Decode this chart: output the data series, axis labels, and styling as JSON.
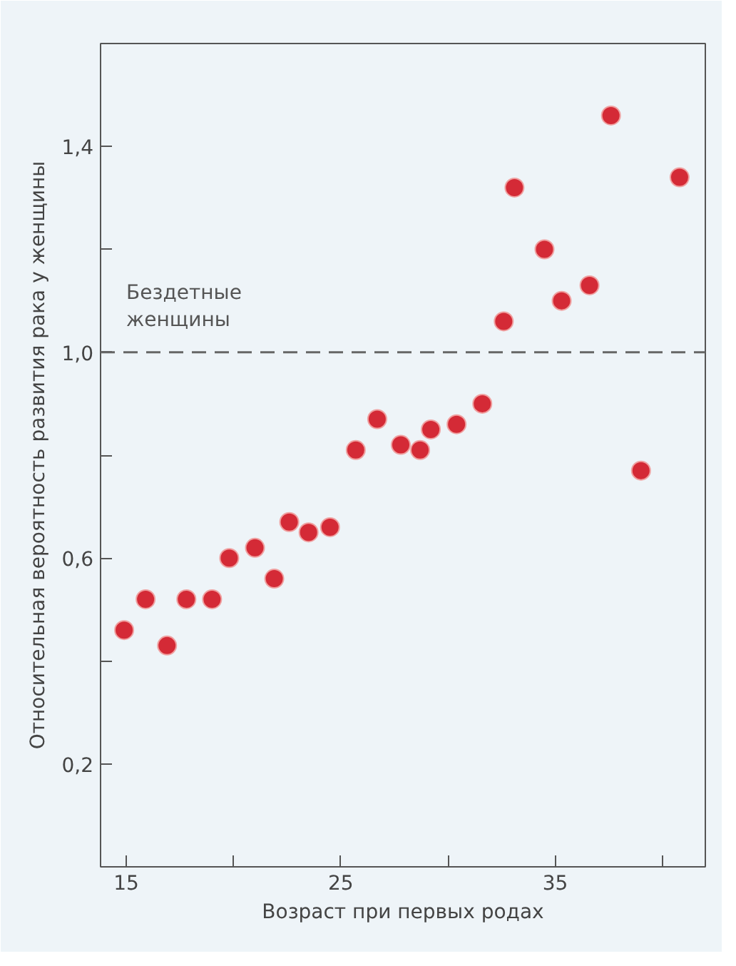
{
  "chart_data": {
    "type": "scatter",
    "xlabel": "Возраст при первых родах",
    "ylabel": "Относительная вероятность развития рака у женщины",
    "x": [
      14.9,
      15.9,
      16.9,
      17.8,
      19.0,
      19.8,
      21.0,
      21.9,
      22.6,
      23.5,
      24.5,
      25.7,
      26.7,
      27.8,
      28.7,
      29.2,
      30.4,
      31.6,
      32.6,
      33.1,
      34.5,
      35.3,
      36.6,
      37.6,
      39.0,
      40.8
    ],
    "series": [
      {
        "color": "#d42a36",
        "values": [
          0.46,
          0.52,
          0.43,
          0.52,
          0.52,
          0.6,
          0.62,
          0.56,
          0.67,
          0.65,
          0.66,
          0.81,
          0.87,
          0.82,
          0.81,
          0.85,
          0.86,
          0.9,
          1.06,
          1.32,
          1.2,
          1.1,
          1.13,
          1.46,
          0.77,
          1.34
        ]
      }
    ],
    "marker": "circle",
    "xlim": [
      13.8,
      42
    ],
    "ylim": [
      0,
      1.6
    ],
    "xticks": [
      15,
      {
        "value": 20,
        "label": null
      },
      25,
      {
        "value": 30,
        "label": null
      },
      35,
      {
        "value": 40,
        "label": null
      }
    ],
    "yticks": [
      {
        "value": 0.2,
        "label": "0,2"
      },
      {
        "value": 0.4,
        "label": null
      },
      {
        "value": 0.6,
        "label": "0,6"
      },
      {
        "value": 0.8,
        "label": null
      },
      {
        "value": 1.0,
        "label": "1,0"
      },
      {
        "value": 1.2,
        "label": null
      },
      {
        "value": 1.4,
        "label": "1,4"
      }
    ],
    "ref_lines": [
      {
        "axis": "y",
        "value": 1.0,
        "label": "Бездетные женщины",
        "color": "#666666",
        "line_style": "dashed"
      }
    ],
    "grid": false
  }
}
